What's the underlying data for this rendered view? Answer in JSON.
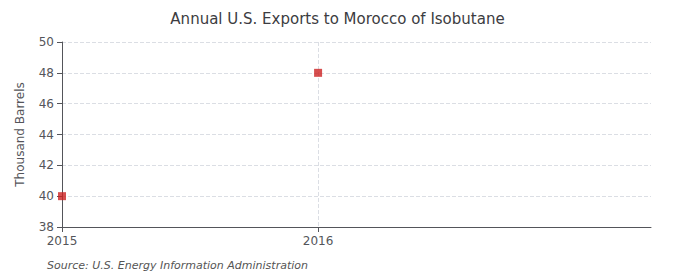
{
  "chart_data": {
    "type": "scatter",
    "title": "Annual U.S. Exports to Morocco of Isobutane",
    "x": [
      2015,
      2016
    ],
    "values": [
      40,
      48
    ],
    "color": "#cc2222",
    "marker": "square",
    "ylabel": "Thousand Barrels",
    "xlim": [
      2015,
      2017.3
    ],
    "xticks": [
      2015,
      2016
    ],
    "ylim": [
      38,
      50
    ],
    "yticks": [
      38,
      40,
      42,
      44,
      46,
      48,
      50
    ],
    "grid": true,
    "annotations": [
      "Source: U.S. Energy Information Administration"
    ]
  }
}
